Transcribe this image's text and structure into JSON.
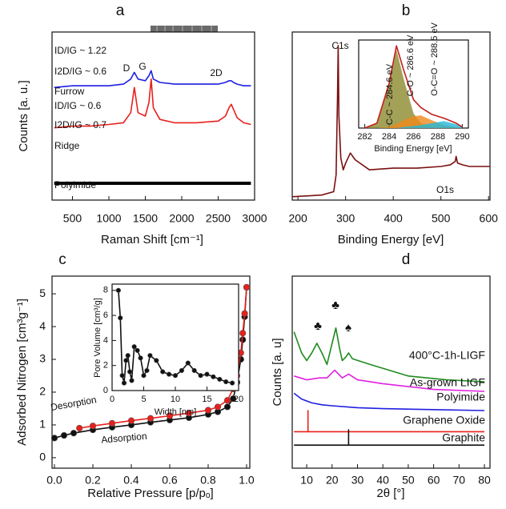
{
  "chart_data": [
    {
      "type": "line",
      "label": "a",
      "xlabel": "Raman Shift [cm⁻¹]",
      "ylabel": "Counts [a. u.]",
      "xlim": [
        220,
        3000
      ],
      "ylim": [
        0,
        10
      ],
      "xticks": [
        500,
        1000,
        1500,
        2000,
        2500,
        3000
      ],
      "x": [
        250,
        500,
        750,
        1000,
        1200,
        1300,
        1350,
        1400,
        1500,
        1550,
        1580,
        1610,
        1700,
        1900,
        2200,
        2500,
        2600,
        2650,
        2680,
        2710,
        2760,
        2850,
        2950
      ],
      "series": [
        {
          "name": "Furrow",
          "color": "#1f1fe0",
          "values": [
            6.7,
            6.8,
            6.8,
            6.8,
            6.9,
            7.2,
            7.6,
            7.2,
            7.1,
            7.4,
            7.7,
            7.2,
            7.0,
            6.9,
            6.9,
            6.9,
            7.0,
            7.1,
            7.1,
            7.0,
            6.9,
            6.8,
            6.8
          ]
        },
        {
          "name": "Ridge",
          "color": "#e8201c",
          "values": [
            4.3,
            4.4,
            4.4,
            4.5,
            4.6,
            5.2,
            6.7,
            5.2,
            5.0,
            5.8,
            7.2,
            5.5,
            4.8,
            4.6,
            4.6,
            4.7,
            5.0,
            5.5,
            5.7,
            5.4,
            4.9,
            4.6,
            4.5
          ]
        },
        {
          "name": "Polyimide",
          "color": "#000000",
          "linewidth": 4,
          "values": [
            1.0,
            1.0,
            1.0,
            1.0,
            1.0,
            1.0,
            1.0,
            1.0,
            1.0,
            1.0,
            1.0,
            1.0,
            1.0,
            1.0,
            1.0,
            1.0,
            1.0,
            1.0,
            1.0,
            1.0,
            1.0,
            1.0,
            1.0
          ]
        }
      ],
      "annotations": [
        {
          "text": "ID/IG ~ 1.22",
          "color": "#1f1fe0"
        },
        {
          "text": "I2D/IG ~ 0.6",
          "color": "#1f1fe0"
        },
        {
          "text": "D",
          "color": "#111111"
        },
        {
          "text": "G",
          "color": "#111111"
        },
        {
          "text": "2D",
          "color": "#111111"
        },
        {
          "text": "ID/IG ~ 0.6",
          "color": "#e8201c"
        },
        {
          "text": "I2D/IG ~ 0.7",
          "color": "#e8201c"
        }
      ]
    },
    {
      "type": "line",
      "label": "b",
      "xlabel": "Binding Energy [eV]",
      "xlim": [
        188,
        603
      ],
      "ylim": [
        0,
        10
      ],
      "xticks": [
        200,
        300,
        400,
        500,
        600
      ],
      "x": [
        188,
        250,
        275,
        280,
        283,
        284.5,
        286,
        290,
        295,
        300,
        310,
        320,
        350,
        400,
        450,
        500,
        520,
        530,
        532,
        535,
        545,
        560,
        603
      ],
      "series": [
        {
          "color": "#7a1010",
          "values": [
            0.2,
            0.3,
            0.5,
            1.5,
            6,
            9.2,
            5,
            2.5,
            1.8,
            2.2,
            2.8,
            2.4,
            1.8,
            1.9,
            1.9,
            2.0,
            2.1,
            2.3,
            2.6,
            2.2,
            2.1,
            2.0,
            2.0
          ]
        }
      ],
      "annotations": [
        {
          "text": "C1s",
          "color": "#111111"
        },
        {
          "text": "O1s",
          "color": "#111111"
        }
      ]
    },
    {
      "type": "line",
      "xlabel": "Binding Energy [eV]",
      "xlim": [
        281.5,
        290.5
      ],
      "ylim": [
        0,
        9
      ],
      "xticks": [
        282,
        284,
        286,
        288,
        290
      ],
      "x": [
        282,
        283,
        284,
        284.6,
        285.2,
        286,
        286.6,
        287.5,
        288.5,
        289.5,
        290
      ],
      "series": [
        {
          "color": "#8c8a2e",
          "area": true,
          "values": [
            0,
            0.5,
            4.5,
            8,
            5,
            1.5,
            0.5,
            0.1,
            0,
            0,
            0
          ]
        },
        {
          "color": "#f08a1c",
          "area": true,
          "values": [
            0,
            0,
            0.1,
            0.4,
            0.8,
            1.2,
            1.3,
            0.8,
            0.3,
            0.1,
            0
          ]
        },
        {
          "color": "#23b8d8",
          "area": true,
          "values": [
            0,
            0,
            0,
            0,
            0.1,
            0.2,
            0.3,
            0.5,
            0.7,
            0.4,
            0.1
          ]
        },
        {
          "color": "#c0201c",
          "values": [
            0,
            0.5,
            4.6,
            8.4,
            5.9,
            2.9,
            2.1,
            1.4,
            1.0,
            0.5,
            0.1
          ]
        }
      ],
      "annotations": [
        {
          "text": "C-C ~ 284.6 eV",
          "color": "#ffffff"
        },
        {
          "text": "C-O ~ 286.6 eV",
          "color": "#111111"
        },
        {
          "text": "O-C=O ~ 288.5 eV",
          "color": "#111111"
        }
      ]
    },
    {
      "type": "line",
      "label": "c",
      "xlabel": "Relative Pressure [p/pₒ]",
      "ylabel": "Adsorbed Nitrogen [cm³g⁻¹]",
      "xlim": [
        -0.0125,
        1.0167
      ],
      "ylim": [
        -0.32,
        5.54
      ],
      "xticks": [
        {
          "value": 0,
          "label": "0.0"
        },
        0.2,
        0.4,
        0.6,
        0.8,
        {
          "value": 1,
          "label": "1.0"
        }
      ],
      "yticks": [
        0,
        1,
        2,
        3,
        4,
        5
      ],
      "series": [
        {
          "color": "#111111",
          "marker": true,
          "x": [
            0.0,
            0.05,
            0.1,
            0.2,
            0.3,
            0.4,
            0.5,
            0.6,
            0.7,
            0.8,
            0.85,
            0.9,
            0.93,
            0.95,
            0.97,
            0.98,
            0.99,
            1.0
          ],
          "values": [
            0.6,
            0.68,
            0.75,
            0.85,
            0.93,
            1.0,
            1.08,
            1.15,
            1.22,
            1.32,
            1.4,
            1.55,
            1.8,
            2.3,
            3.0,
            3.6,
            4.3,
            5.2
          ]
        },
        {
          "color": "#e8201c",
          "marker": true,
          "x": [
            0.13,
            0.2,
            0.3,
            0.4,
            0.5,
            0.6,
            0.7,
            0.8,
            0.85,
            0.9,
            0.93,
            0.95,
            0.97,
            0.98,
            0.99,
            1.0
          ],
          "values": [
            0.9,
            0.97,
            1.05,
            1.13,
            1.2,
            1.28,
            1.36,
            1.45,
            1.55,
            1.75,
            2.1,
            2.5,
            3.2,
            3.8,
            4.4,
            5.2
          ]
        }
      ],
      "annotations": [
        {
          "text": "Desorption",
          "color": "#e8201c"
        },
        {
          "text": "Adsorption",
          "color": "#111111"
        }
      ]
    },
    {
      "type": "line",
      "xlabel": "Width [nm]",
      "ylabel": "Pore Volume [cm³/g]",
      "xlim": [
        0,
        20
      ],
      "ylim": [
        0,
        8.5
      ],
      "xticks": [
        0,
        5,
        10,
        15,
        20
      ],
      "yticks": [
        0,
        2,
        4,
        6,
        8
      ],
      "x": [
        1,
        1.3,
        1.6,
        1.9,
        2.2,
        2.5,
        2.8,
        3.1,
        3.5,
        4,
        4.5,
        5,
        5.5,
        6,
        7,
        8,
        9,
        10,
        11,
        12,
        13,
        14,
        15,
        16,
        17,
        18,
        19
      ],
      "series": [
        {
          "color": "#111111",
          "marker": true,
          "values": [
            8,
            5.8,
            1.2,
            0.6,
            2.4,
            2.8,
            1.5,
            0.8,
            3.5,
            3.2,
            2.6,
            1.2,
            1.6,
            2.8,
            2.4,
            1.5,
            1.3,
            1.2,
            1.6,
            2.2,
            1.6,
            1.2,
            1.3,
            1.1,
            0.9,
            0.7,
            0.6
          ]
        }
      ]
    },
    {
      "type": "line",
      "label": "d",
      "xlabel": "2θ [°]",
      "ylabel": "Counts [a. u]",
      "xlim": [
        4.3,
        82.2
      ],
      "ylim": [
        0,
        10
      ],
      "xticks": [
        10,
        20,
        30,
        40,
        50,
        60,
        70,
        80
      ],
      "series": [
        {
          "name": "400°C-1h-LIGF",
          "color": "#1f8a1f",
          "x": [
            5,
            8,
            10,
            12,
            14,
            16,
            18,
            20,
            21.5,
            23,
            24,
            25.5,
            26.5,
            28,
            35,
            50,
            65,
            80
          ],
          "values": [
            7.1,
            6.0,
            5.6,
            6.0,
            6.5,
            6.0,
            5.4,
            6.5,
            7.3,
            6.2,
            5.6,
            5.8,
            6.0,
            5.7,
            5.4,
            4.8,
            4.6,
            4.5
          ]
        },
        {
          "name": "As-grown LIGF",
          "color": "#e020e0",
          "x": [
            5,
            10,
            15,
            18,
            21,
            24,
            26.5,
            30,
            40,
            60,
            80
          ],
          "values": [
            4.8,
            4.6,
            4.7,
            4.7,
            5.1,
            4.7,
            4.9,
            4.6,
            4.4,
            4.1,
            4.0
          ]
        },
        {
          "name": "Polyimide",
          "color": "#1f1fe0",
          "x": [
            5,
            8,
            12,
            16,
            20,
            30,
            40,
            60,
            80
          ],
          "values": [
            3.9,
            3.6,
            3.4,
            3.3,
            3.25,
            3.15,
            3.1,
            3.05,
            3.0
          ]
        },
        {
          "name": "Graphene Oxide",
          "color": "#e8201c",
          "x": [
            5,
            10.5,
            10.5,
            10.5,
            80
          ],
          "values": [
            1.9,
            1.9,
            3.0,
            1.9,
            1.9
          ]
        },
        {
          "name": "Graphite",
          "color": "#111111",
          "x": [
            5,
            26.5,
            26.5,
            26.5,
            80
          ],
          "values": [
            1.2,
            1.2,
            2.0,
            1.2,
            1.2
          ]
        }
      ],
      "annotations": [
        {
          "text": "♣",
          "color": "#111111"
        },
        {
          "text": "♣",
          "color": "#111111"
        },
        {
          "text": "♠",
          "color": "#111111"
        }
      ]
    }
  ]
}
